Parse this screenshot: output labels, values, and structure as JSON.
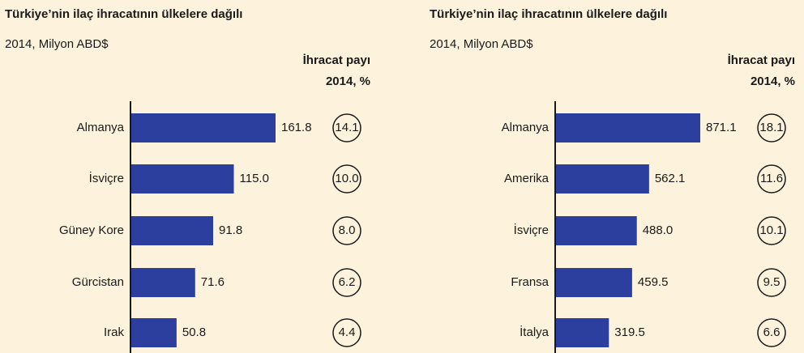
{
  "chart_data": [
    {
      "type": "bar",
      "title": "Türkiye’nin ilaç ihracatının ülkelere dağılı",
      "subtitle": "2014, Milyon ABD$",
      "share_title": [
        "İhracat payı",
        "2014, %"
      ],
      "categories": [
        "Almanya",
        "İsviçre",
        "Güney Kore",
        "Gürcistan",
        "Irak"
      ],
      "values": [
        161.8,
        115,
        91.8,
        71.6,
        50.8
      ],
      "value_labels": [
        "161.8",
        "115.0",
        "91.8",
        "71.6",
        "50.8"
      ],
      "shares": [
        14.1,
        10,
        8,
        6.2,
        4.4
      ],
      "share_labels": [
        "14.1",
        "10.0",
        "8.0",
        "6.2",
        "4.4"
      ],
      "color": "#2c3f9e"
    },
    {
      "type": "bar",
      "title": "Türkiye’nin ilaç ihracatının ülkelere dağılı",
      "subtitle": "2014, Milyon ABD$",
      "share_title": [
        "İhracat payı",
        "2014, %"
      ],
      "categories": [
        "Almanya",
        "Amerika",
        "İsviçre",
        "Fransa",
        "İtalya"
      ],
      "values": [
        871.1,
        562.1,
        488,
        459.5,
        319.5
      ],
      "value_labels": [
        "871.1",
        "562.1",
        "488.0",
        "459.5",
        "319.5"
      ],
      "shares": [
        18.1,
        11.6,
        10.1,
        9.5,
        6.6
      ],
      "share_labels": [
        "18.1",
        "11.6",
        "10.1",
        "9.5",
        "6.6"
      ],
      "color": "#2c3f9e"
    }
  ]
}
